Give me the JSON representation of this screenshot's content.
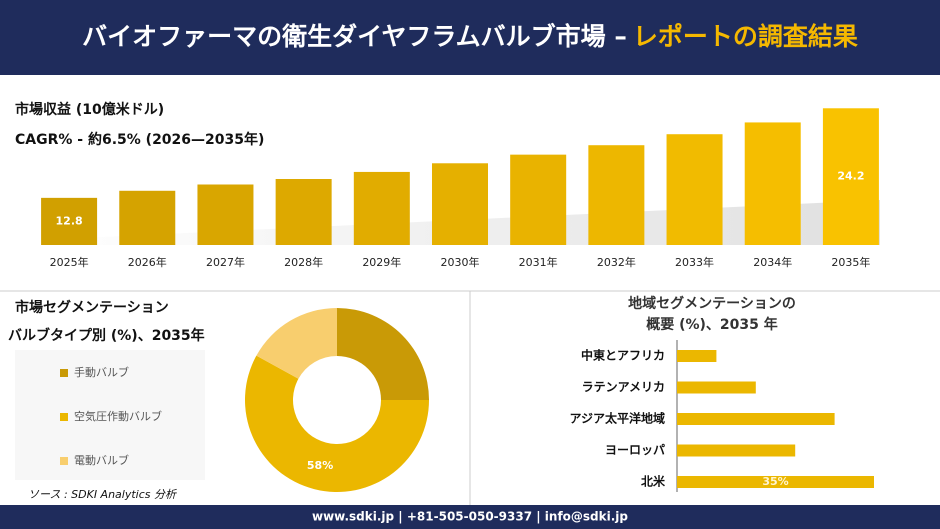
{
  "header": {
    "title": "バイオファーマの衛生ダイヤフラムバルブ市場 –",
    "title_highlight": "レポートの調査結果"
  },
  "chart_data": [
    {
      "type": "bar",
      "title": "市場収益 (10億米ドル)",
      "subtitle": "CAGR% - 約6.5% (2026—2035年)",
      "categories": [
        "2025年",
        "2026年",
        "2027年",
        "2028年",
        "2029年",
        "2030年",
        "2031年",
        "2032年",
        "2033年",
        "2034年",
        "2035年"
      ],
      "values": [
        12.8,
        13.7,
        14.5,
        15.2,
        16.1,
        17.2,
        18.3,
        19.5,
        20.9,
        22.4,
        24.2
      ],
      "value_labels": [
        "12.8",
        null,
        null,
        null,
        null,
        null,
        null,
        null,
        null,
        null,
        "24.2"
      ],
      "colors": [
        "#d1a000",
        "#d5a300",
        "#d9a600",
        "#dda900",
        "#e1ac00",
        "#e5b000",
        "#e9b300",
        "#edb700",
        "#f1bb00",
        "#f5be00",
        "#f9c200"
      ],
      "ylim": [
        6.8,
        25
      ]
    },
    {
      "type": "donut",
      "title": "市場セグメンテーション",
      "subtitle": "バルブタイプ別 (%)、2035年",
      "categories": [
        "手動バルブ",
        "空気圧作動バルブ",
        "電動バルブ"
      ],
      "values": [
        25,
        58,
        17
      ],
      "value_labels": [
        null,
        "58%",
        null
      ],
      "colors": [
        "#c99a06",
        "#ebb700",
        "#f8ce6e"
      ],
      "source": "ソース : SDKI Analytics 分析"
    },
    {
      "type": "hbar",
      "title": "地域セグメンテーションの",
      "subtitle": "概要 (%)、2035 年",
      "categories": [
        "中東とアフリカ",
        "ラテンアメリカ",
        "アジア太平洋地域",
        "ヨーロッパ",
        "北米"
      ],
      "values": [
        7,
        14,
        28,
        21,
        35
      ],
      "value_labels": [
        null,
        null,
        null,
        null,
        "35%"
      ],
      "color": "#ebb700",
      "xlim": [
        0,
        35
      ]
    }
  ],
  "footer": {
    "text": "www.sdki.jp | +81-505-050-9337 | info@sdki.jp"
  }
}
